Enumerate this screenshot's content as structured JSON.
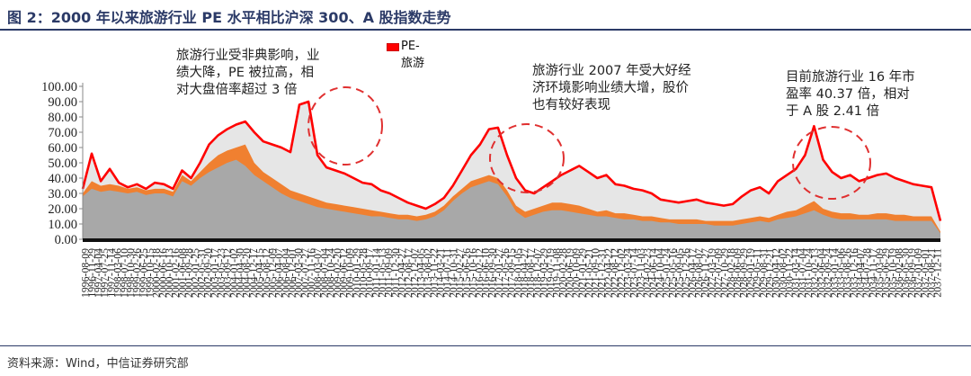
{
  "title": "图 2：2000 年以来旅游行业 PE 水平相比沪深 300、A 股指数走势",
  "source": "资料来源：Wind，中信证券研究部",
  "legend": {
    "line1": "PE-",
    "line2": "旅游"
  },
  "annotations": [
    {
      "lines": [
        "旅游行业受非典影响，业",
        "绩大降，PE 被拉高，相",
        "对大盘倍率超过 3 倍"
      ]
    },
    {
      "lines": [
        "旅游行业 2007 年受大好经",
        "济环境影响业绩大增，股价",
        "也有较好表现"
      ]
    },
    {
      "lines": [
        "目前旅游行业 16 年市",
        "盈率 40.37 倍，相对",
        "于 A 股 2.41 倍"
      ]
    }
  ],
  "colors": {
    "tourism": "#ff0000",
    "a_share": "#f08030",
    "hs300": "#a8a8a8",
    "area_light": "#e6e6e6",
    "circle": "#e03030",
    "title": "#2b3a67"
  },
  "chart_data": {
    "type": "line",
    "ylim": [
      0,
      100
    ],
    "yticks": [
      "0.00",
      "10.00",
      "20.00",
      "30.00",
      "40.00",
      "50.00",
      "60.00",
      "70.00",
      "80.00",
      "90.00",
      "100.00"
    ],
    "xticks": [
      "1996-08-09",
      "1996-11-29",
      "1997-04-04",
      "1997-07-25",
      "1997-11-14",
      "1998-03-06",
      "1998-07-10",
      "1998-10-30",
      "1999-02-26",
      "1999-06-25",
      "1999-10-15",
      "2000-02-18",
      "2000-06-16",
      "2000-10-13",
      "2001-02-16",
      "2001-06-08",
      "2001-09-28",
      "2002-01-25",
      "2002-05-31",
      "2002-09-20",
      "2003-01-17",
      "2003-05-23",
      "2003-09-12",
      "2004-01-02",
      "2004-04-30",
      "2004-08-20",
      "2004-12-17",
      "2005-04-15",
      "2005-08-12",
      "2005-12-09",
      "2006-04-07",
      "2006-08-04",
      "2006-12-01",
      "2007-03-30",
      "2007-07-27",
      "2007-11-16",
      "2008-03-07",
      "2008-07-04",
      "2008-10-24",
      "2009-02-20",
      "2009-06-12",
      "2009-10-09",
      "2010-01-29",
      "2010-05-28",
      "2010-09-17",
      "2011-01-14",
      "2011-05-13",
      "2011-09-09",
      "2011-12-30",
      "2012-04-27",
      "2012-08-17",
      "2012-12-07",
      "2013-04-05",
      "2013-08-02",
      "2013-11-22",
      "2014-03-21",
      "2014-07-11",
      "2014-10-31",
      "2015-02-27",
      "2015-06-26",
      "2015-10-16",
      "2016-02-12",
      "2016-06-10",
      "2016-09-30",
      "2017-01-27",
      "2017-05-26",
      "2017-09-15",
      "2018-01-05",
      "2018-04-27",
      "2018-08-17",
      "2018-12-07",
      "2019-03-29",
      "2019-07-19",
      "2019-11-08",
      "2020-02-28",
      "2020-06-19",
      "2020-10-09",
      "2021-01-29",
      "2021-05-21",
      "2021-09-10",
      "2021-12-31",
      "2022-04-22",
      "2022-08-12",
      "2022-12-02",
      "2023-03-24",
      "2023-07-14",
      "2023-11-03",
      "2024-02-23",
      "2024-06-14",
      "2024-10-04",
      "2025-01-24",
      "2025-05-16",
      "2025-09-05",
      "2025-12-26",
      "2026-04-17",
      "2026-08-07",
      "2026-11-27",
      "2027-03-19",
      "2027-07-09",
      "2027-10-29",
      "2028-02-18",
      "2028-06-09",
      "2028-09-29",
      "2029-01-19",
      "2029-05-11",
      "2029-08-31",
      "2029-12-21",
      "2030-04-12",
      "2030-08-02",
      "2030-11-22",
      "2031-03-14",
      "2031-07-04",
      "2031-10-24",
      "2032-02-13",
      "2032-06-04",
      "2032-09-24",
      "2033-01-14",
      "2033-05-06",
      "2033-08-26",
      "2033-12-16",
      "2034-04-07",
      "2034-07-28",
      "2034-11-17",
      "2035-03-09",
      "2035-06-29",
      "2035-10-19",
      "2036-02-08",
      "2036-05-30",
      "2036-09-19",
      "2037-01-09",
      "2037-05-01",
      "2037-08-21",
      "2037-12-11"
    ],
    "series": [
      {
        "name": "PE-旅游",
        "values": [
          33,
          56,
          38,
          46,
          37,
          34,
          36,
          33,
          37,
          36,
          33,
          45,
          40,
          50,
          62,
          68,
          72,
          75,
          77,
          70,
          64,
          62,
          60,
          57,
          88,
          90,
          55,
          47,
          45,
          43,
          40,
          37,
          36,
          32,
          30,
          27,
          24,
          22,
          20,
          23,
          27,
          35,
          45,
          55,
          62,
          72,
          73,
          55,
          40,
          32,
          30,
          34,
          38,
          42,
          45,
          48,
          44,
          40,
          42,
          36,
          35,
          33,
          32,
          30,
          26,
          25,
          24,
          25,
          26,
          24,
          23,
          22,
          23,
          28,
          32,
          34,
          30,
          38,
          42,
          46,
          55,
          74,
          52,
          44,
          40,
          42,
          38,
          40,
          42,
          43,
          40,
          38,
          36,
          35,
          34,
          12
        ]
      },
      {
        "name": "",
        "values": [
          30,
          38,
          35,
          36,
          35,
          33,
          34,
          32,
          33,
          33,
          31,
          42,
          38,
          44,
          50,
          55,
          58,
          60,
          62,
          50,
          44,
          40,
          36,
          32,
          30,
          28,
          26,
          24,
          23,
          22,
          21,
          20,
          19,
          18,
          17,
          16,
          16,
          15,
          16,
          18,
          22,
          28,
          33,
          38,
          40,
          42,
          40,
          32,
          22,
          18,
          20,
          22,
          24,
          24,
          23,
          22,
          20,
          18,
          19,
          17,
          17,
          16,
          15,
          15,
          14,
          13,
          13,
          13,
          13,
          12,
          12,
          12,
          12,
          13,
          14,
          15,
          14,
          16,
          18,
          19,
          22,
          25,
          20,
          18,
          17,
          17,
          16,
          16,
          17,
          17,
          16,
          16,
          15,
          15,
          15,
          5
        ]
      },
      {
        "name": "",
        "values": [
          28,
          33,
          31,
          32,
          31,
          30,
          31,
          29,
          30,
          30,
          28,
          38,
          35,
          40,
          44,
          47,
          50,
          52,
          48,
          42,
          38,
          34,
          30,
          27,
          25,
          23,
          21,
          20,
          19,
          18,
          17,
          16,
          15,
          15,
          14,
          13,
          13,
          12,
          13,
          15,
          19,
          25,
          30,
          34,
          36,
          38,
          36,
          28,
          18,
          14,
          16,
          18,
          19,
          19,
          18,
          17,
          16,
          15,
          15,
          14,
          13,
          13,
          12,
          12,
          11,
          11,
          10,
          10,
          10,
          10,
          9,
          9,
          9,
          10,
          11,
          12,
          11,
          13,
          14,
          15,
          17,
          19,
          16,
          14,
          13,
          13,
          13,
          13,
          13,
          13,
          12,
          12,
          12,
          12,
          12,
          4
        ]
      }
    ]
  }
}
